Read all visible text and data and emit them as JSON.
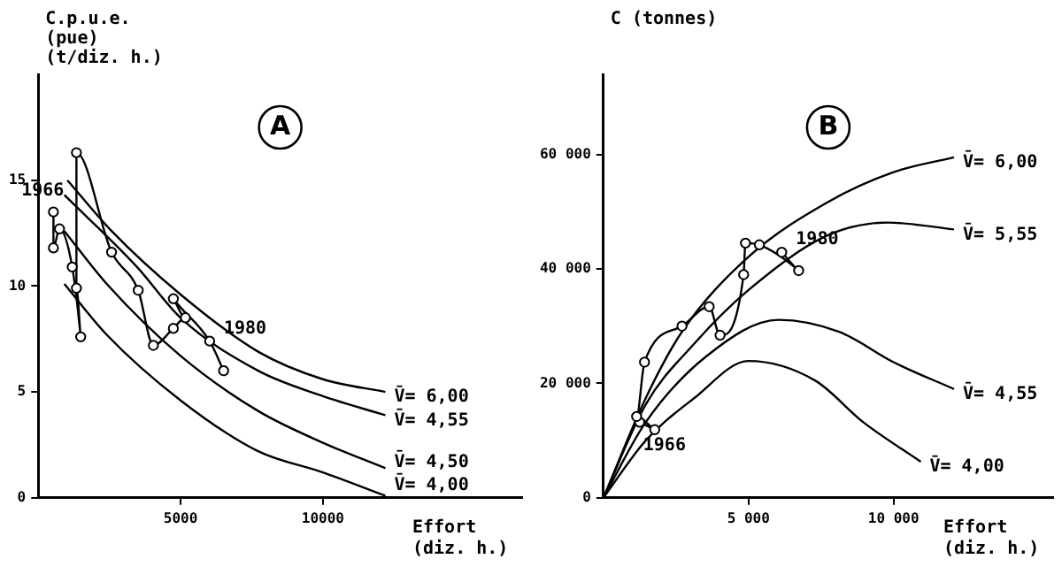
{
  "chart_data": [
    {
      "type": "line",
      "title": "A",
      "ylabel": "C.p.u.e.\n(pue)\n(t/diz. h.)",
      "xlabel": "Effort\n(diz. h.)",
      "xlim": [
        0,
        17000
      ],
      "ylim": [
        0,
        20
      ],
      "xticks": [
        5000,
        10000
      ],
      "yticks": [
        0,
        5,
        10,
        15
      ],
      "grid": false,
      "legend": false,
      "series": [
        {
          "color": "#000000",
          "marker": "circle",
          "x": [
            532,
            532,
            745,
            1192,
            1490,
            1340,
            1340,
            2575,
            3511,
            4043,
            4745,
            5170,
            4745,
            6022,
            6511
          ],
          "values": [
            13.5,
            11.8,
            12.7,
            10.9,
            7.6,
            9.9,
            16.3,
            11.6,
            9.8,
            7.2,
            8.0,
            8.5,
            9.4,
            7.4,
            6.0
          ]
        },
        {
          "name": "V̄= 6,00",
          "color": "#000000",
          "marker": "none",
          "x": [
            1021,
            2575,
            5000,
            7724,
            10000,
            12193
          ],
          "values": [
            15.0,
            12.6,
            9.6,
            6.9,
            5.6,
            5.0
          ]
        },
        {
          "name": "V̄= 4,55",
          "color": "#000000",
          "marker": "none",
          "x": [
            915,
            3469,
            5000,
            7724,
            10000,
            12193
          ],
          "values": [
            14.3,
            10.9,
            8.5,
            6.0,
            4.8,
            3.9
          ]
        },
        {
          "name": "V̄= 4,50",
          "color": "#000000",
          "marker": "none",
          "x": [
            915,
            2405,
            5000,
            7724,
            10000,
            12193
          ],
          "values": [
            12.6,
            10.1,
            6.7,
            4.1,
            2.6,
            1.4
          ]
        },
        {
          "name": "V̄= 4,00",
          "color": "#000000",
          "marker": "none",
          "x": [
            915,
            2405,
            5000,
            7724,
            10000,
            12193
          ],
          "values": [
            10.1,
            7.7,
            4.6,
            2.2,
            1.2,
            0.1
          ]
        }
      ],
      "annotations": [
        {
          "text": "1966",
          "x": 532,
          "y": 13.5
        },
        {
          "text": "1980",
          "x": 6022,
          "y": 7.4
        }
      ]
    },
    {
      "type": "line",
      "title": "B",
      "ylabel": "C (tonnes)",
      "xlabel": "Effort\n(diz. h.)",
      "xlim": [
        0,
        15500
      ],
      "ylim": [
        0,
        74000
      ],
      "xticks": [
        {
          "value": 5000,
          "label": "5 000"
        },
        {
          "value": 10000,
          "label": "10 000"
        }
      ],
      "yticks": [
        0,
        {
          "value": 20000,
          "label": "20 000"
        },
        {
          "value": 40000,
          "label": "40 000"
        },
        {
          "value": 60000,
          "label": "60 000"
        }
      ],
      "grid": false,
      "legend": false,
      "series": [
        {
          "color": "#000000",
          "marker": "circle",
          "x": [
            1250,
            1770,
            1146,
            1417,
            2708,
            3646,
            4021,
            4833,
            4896,
            5375,
            6729,
            6146
          ],
          "values": [
            13200,
            11900,
            14200,
            23700,
            30000,
            33400,
            28400,
            39000,
            44500,
            44200,
            39700,
            42900
          ]
        },
        {
          "name": "V̄= 6,00",
          "color": "#000000",
          "marker": "none",
          "x": [
            0,
            1458,
            2708,
            5000,
            7708,
            10000,
            12083
          ],
          "values": [
            0,
            17400,
            29000,
            42100,
            51600,
            56900,
            59500
          ]
        },
        {
          "name": "V̄= 5,55",
          "color": "#000000",
          "marker": "none",
          "x": [
            0,
            1458,
            3125,
            5000,
            7708,
            9792,
            12083
          ],
          "values": [
            0,
            16300,
            26900,
            36300,
            45800,
            48100,
            46900
          ]
        },
        {
          "name": "V̄= 4,55",
          "color": "#000000",
          "marker": "none",
          "x": [
            0,
            1458,
            3542,
            6042,
            8125,
            10000,
            12083
          ],
          "values": [
            0,
            13200,
            24700,
            31100,
            29000,
            23700,
            19000
          ]
        },
        {
          "name": "V̄= 4,00",
          "color": "#000000",
          "marker": "none",
          "x": [
            0,
            1458,
            3125,
            5000,
            7292,
            8958,
            10938
          ],
          "values": [
            0,
            10000,
            17400,
            23900,
            20500,
            13200,
            6300
          ]
        }
      ],
      "annotations": [
        {
          "text": "1966",
          "x": 1250,
          "y": 13200
        },
        {
          "text": "1980",
          "x": 6146,
          "y": 42900
        }
      ]
    }
  ]
}
